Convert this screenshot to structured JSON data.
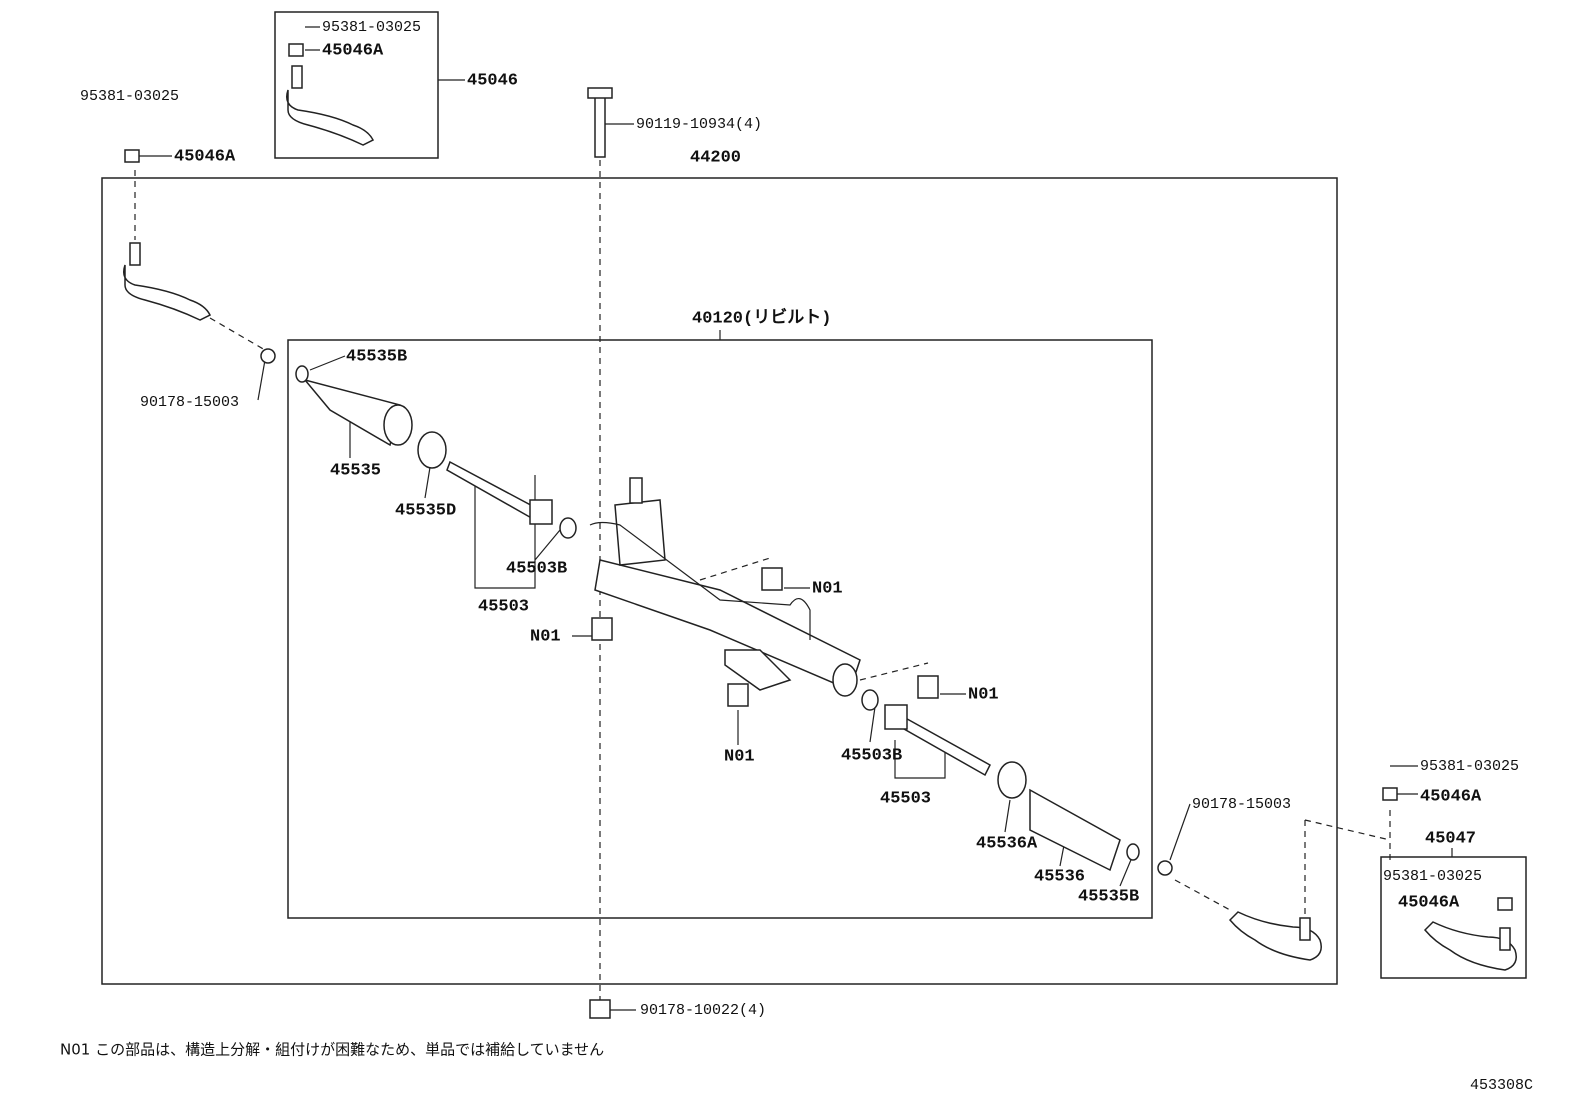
{
  "callouts": [
    "95381-03025",
    "45046A",
    "45046",
    "95381-03025",
    "45046A",
    "90119-10934(4)",
    "44200",
    "40120(リビルト)",
    "45535B",
    "90178-15003",
    "45535",
    "45535D",
    "45503B",
    "45503",
    "N01",
    "N01",
    "N01",
    "N01",
    "45503B",
    "45503",
    "90178-15003",
    "95381-03025",
    "45046A",
    "45047",
    "95381-03025",
    "45046A",
    "45536A",
    "45536",
    "45535B",
    "90178-10022(4)"
  ],
  "note": "N01 この部品は、構造上分解・組付けが困難なため、単品では補給していません",
  "figure_id": "453308C"
}
